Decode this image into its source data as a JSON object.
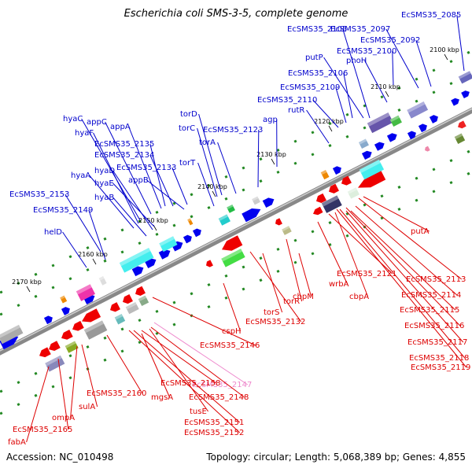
{
  "title": "Escherichia coli SMS-3-5, complete genome",
  "footer": {
    "accession": "Accession: NC_010498",
    "summary": "Topology: circular; Length: 5,068,389 bp; Genes: 4,855"
  },
  "colors": {
    "forward_label": "#0000cc",
    "reverse_label": "#dd0000",
    "highlight_label": "#ee88cc",
    "backbone": "#888888",
    "tick": "#228822",
    "forward_gene": "#0000ee",
    "reverse_gene": "#ee0000"
  },
  "ruler": [
    {
      "label": "2100 kbp"
    },
    {
      "label": "2110 kbp"
    },
    {
      "label": "2120 kbp"
    },
    {
      "label": "2130 kbp"
    },
    {
      "label": "2140 kbp"
    },
    {
      "label": "2150 kbp"
    },
    {
      "label": "2160 kbp"
    },
    {
      "label": "2170 kbp"
    }
  ],
  "forward_labels": [
    {
      "text": "EcSMS35_2085"
    },
    {
      "text": "EcSMS35_2092"
    },
    {
      "text": "EcSMS35_2097"
    },
    {
      "text": "EcSMS35_2105"
    },
    {
      "text": "EcSMS35_2100"
    },
    {
      "text": "putP"
    },
    {
      "text": "phoH"
    },
    {
      "text": "EcSMS35_2106"
    },
    {
      "text": "EcSMS35_2109"
    },
    {
      "text": "EcSMS35_2110"
    },
    {
      "text": "rutR"
    },
    {
      "text": "torD"
    },
    {
      "text": "torC"
    },
    {
      "text": "EcSMS35_2123"
    },
    {
      "text": "agp"
    },
    {
      "text": "torA"
    },
    {
      "text": "torT"
    },
    {
      "text": "hyaC"
    },
    {
      "text": "appC"
    },
    {
      "text": "appA"
    },
    {
      "text": "hyaF"
    },
    {
      "text": "EcSMS35_2135"
    },
    {
      "text": "EcSMS35_2134"
    },
    {
      "text": "hyaD"
    },
    {
      "text": "EcSMS35_2133"
    },
    {
      "text": "hyaA"
    },
    {
      "text": "hyaE"
    },
    {
      "text": "appB"
    },
    {
      "text": "EcSMS35_2153"
    },
    {
      "text": "hyaB"
    },
    {
      "text": "EcSMS35_2149"
    },
    {
      "text": "helD"
    }
  ],
  "reverse_labels": [
    {
      "text": "putA"
    },
    {
      "text": "EcSMS35_2113"
    },
    {
      "text": "EcSMS35_2121"
    },
    {
      "text": "EcSMS35_2114"
    },
    {
      "text": "wrbA"
    },
    {
      "text": "cbpA"
    },
    {
      "text": "EcSMS35_2115"
    },
    {
      "text": "cbpM"
    },
    {
      "text": "EcSMS35_2116"
    },
    {
      "text": "torR"
    },
    {
      "text": "EcSMS35_2117"
    },
    {
      "text": "torS"
    },
    {
      "text": "EcSMS35_2118"
    },
    {
      "text": "EcSMS35_2132"
    },
    {
      "text": "EcSMS35_2119"
    },
    {
      "text": "cspH"
    },
    {
      "text": "EcSMS35_2146"
    },
    {
      "text": "EcSMS35_2147",
      "highlight": true
    },
    {
      "text": "EcSMS35_2158"
    },
    {
      "text": "EcSMS35_2148"
    },
    {
      "text": "mgsA"
    },
    {
      "text": "EcSMS35_2160"
    },
    {
      "text": "tusE"
    },
    {
      "text": "sulA"
    },
    {
      "text": "EcSMS35_2151"
    },
    {
      "text": "EcSMS35_2152"
    },
    {
      "text": "ompA"
    },
    {
      "text": "EcSMS35_2165"
    },
    {
      "text": "fabA"
    }
  ]
}
